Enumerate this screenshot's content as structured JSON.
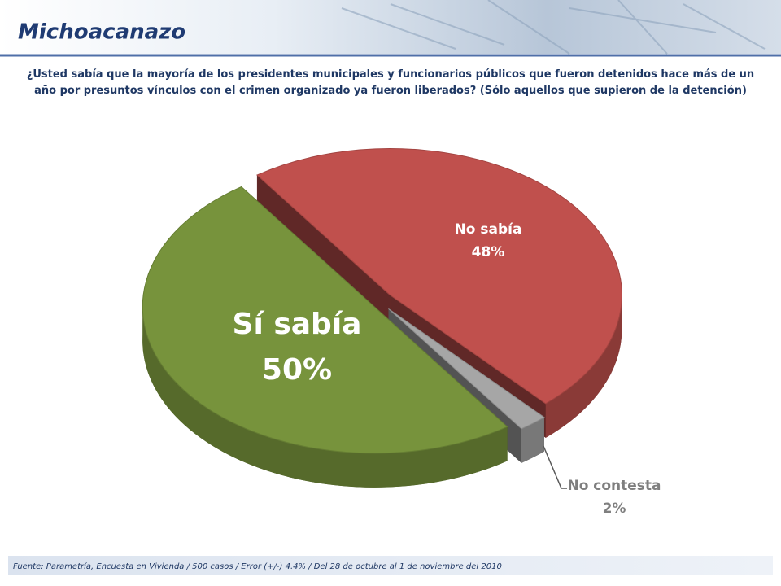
{
  "chart_data": {
    "type": "pie",
    "title": "Michoacanazo",
    "subtitle": "¿Usted sabía que la mayoría de los presidentes municipales y funcionarios públicos que fueron detenidos hace más de un año por presuntos vínculos con el crimen organizado ya fueron liberados? (Sólo aquellos que supieron de la detención)",
    "categories": [
      "No sabía",
      "No contesta",
      "Sí sabía"
    ],
    "values": [
      48,
      2,
      50
    ],
    "value_labels": [
      "48%",
      "2%",
      "50%"
    ],
    "colors": [
      "#c0504d",
      "#a6a6a6",
      "#77933c"
    ],
    "source": "Fuente: Parametría, Encuesta en Vivienda / 500 casos / Error (+/-) 4.4% / Del 28 de octubre al 1 de noviembre del 2010"
  }
}
